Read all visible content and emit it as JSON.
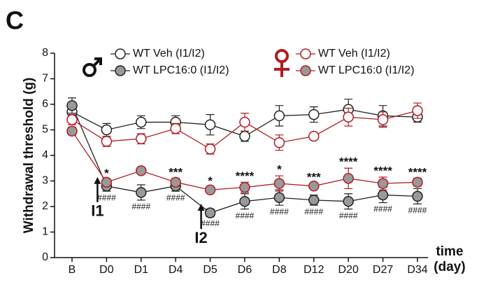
{
  "chart_data": {
    "type": "line",
    "panel": "C",
    "ylabel": "Withdrawal threshold (g)",
    "xlabel": [
      "time",
      "(day)"
    ],
    "categories": [
      "B",
      "D0",
      "D1",
      "D4",
      "D5",
      "D6",
      "D8",
      "D12",
      "D20",
      "D27",
      "D34"
    ],
    "ylim": [
      0,
      8
    ],
    "yticks": [
      0,
      1,
      2,
      3,
      4,
      5,
      6,
      7,
      8
    ],
    "series": [
      {
        "name": "WT Veh (I1/I2)",
        "color": "#222222",
        "marker_fill": "#ffffff",
        "values": [
          5.7,
          5.0,
          5.3,
          5.3,
          5.2,
          4.75,
          5.55,
          5.6,
          5.8,
          5.55,
          5.5
        ],
        "errors": [
          0.3,
          0.25,
          0.25,
          0.25,
          0.4,
          0.2,
          0.4,
          0.3,
          0.4,
          0.4,
          0.2
        ]
      },
      {
        "name": "WT LPC16:0 (I1/I2)",
        "color": "#222222",
        "marker_fill": "#999999",
        "values": [
          5.95,
          2.8,
          2.55,
          2.8,
          1.75,
          2.2,
          2.35,
          2.25,
          2.2,
          2.45,
          2.4
        ],
        "errors": [
          0.3,
          0.2,
          0.3,
          0.2,
          0.15,
          0.3,
          0.3,
          0.2,
          0.3,
          0.3,
          0.3
        ]
      },
      {
        "name": "WT Veh (I1/I2)",
        "color": "#b01c22",
        "marker_fill": "#ffffff",
        "values": [
          5.4,
          4.55,
          4.65,
          5.05,
          4.25,
          5.3,
          4.5,
          4.75,
          5.5,
          5.4,
          5.75
        ],
        "errors": [
          0.2,
          0.2,
          0.2,
          0.2,
          0.2,
          0.35,
          0.3,
          0.1,
          0.35,
          0.3,
          0.3
        ]
      },
      {
        "name": "WT LPC16:0 (I1/I2)",
        "color": "#b01c22",
        "marker_fill": "#999999",
        "values": [
          4.95,
          2.95,
          3.4,
          2.95,
          2.65,
          2.75,
          2.9,
          2.8,
          3.1,
          2.9,
          2.95
        ],
        "errors": [
          0.15,
          0.1,
          0.1,
          0.15,
          0.1,
          0.2,
          0.3,
          0.1,
          0.4,
          0.25,
          0.15
        ]
      }
    ],
    "stars": [
      null,
      "*",
      null,
      "***",
      "*",
      "****",
      "*",
      "***",
      "****",
      "****",
      "****"
    ],
    "hashes": [
      null,
      "####",
      "####",
      "####",
      "####",
      "####",
      "####",
      "####",
      "####",
      "####",
      "####"
    ],
    "injections": [
      {
        "text": "I1",
        "at": "D0"
      },
      {
        "text": "I2",
        "at": "D5"
      }
    ]
  }
}
